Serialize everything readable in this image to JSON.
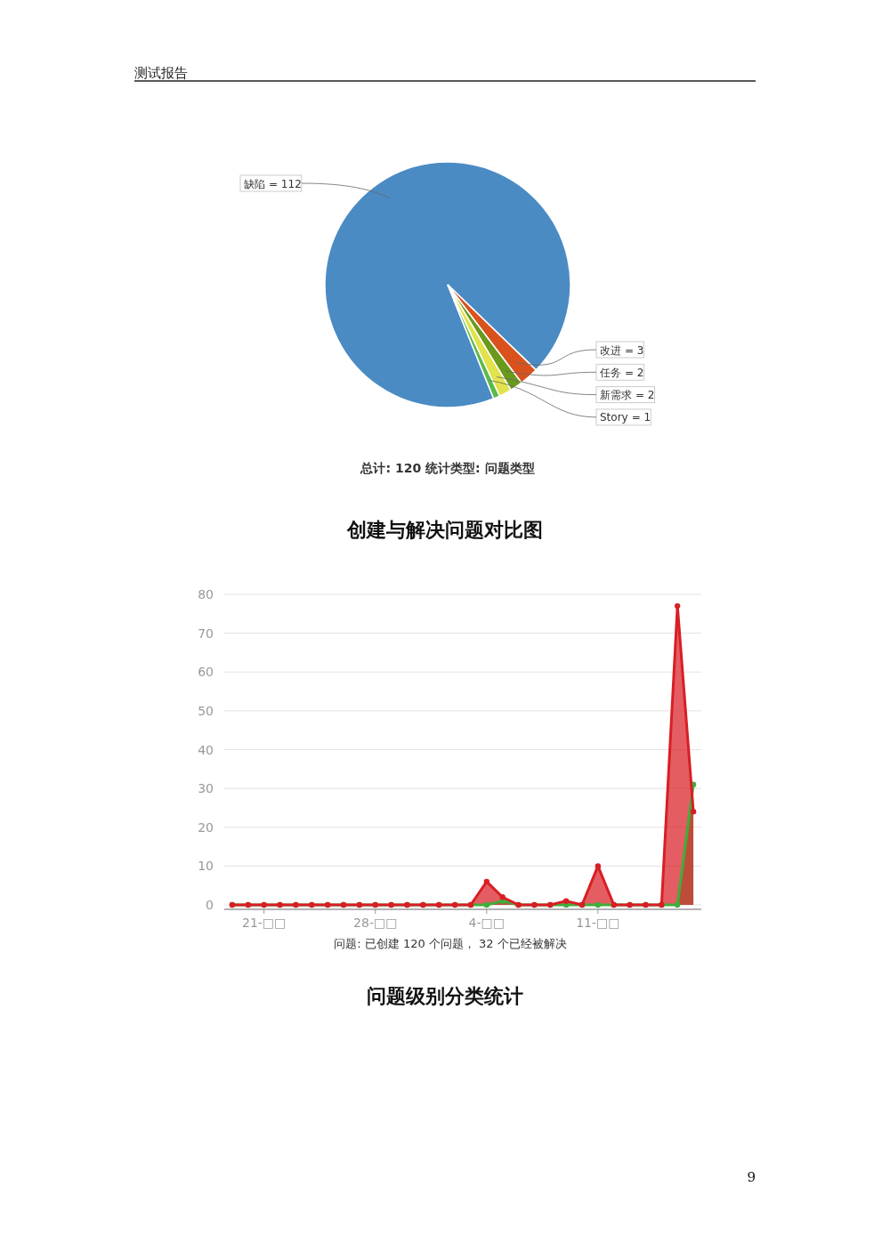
{
  "chart_data": [
    {
      "type": "pie",
      "categories": [
        "缺陷",
        "改进",
        "任务",
        "新需求",
        "Story"
      ],
      "values": [
        112,
        3,
        2,
        2,
        1
      ],
      "colors": [
        "#4a8bc4",
        "#d9521e",
        "#6a9a1c",
        "#e2e24c",
        "#5cba48"
      ],
      "value_labels": [
        "= 112",
        "= 3",
        "= 2",
        "= 2",
        "= 1"
      ],
      "annotations": [
        "测试报告",
        "总计: 120    统计类型: 问题类型"
      ]
    },
    {
      "type": "area",
      "title": "创建与解决问题对比图",
      "categories": [
        null,
        null,
        "21-□□",
        null,
        null,
        null,
        null,
        null,
        null,
        "28-□□",
        null,
        null,
        null,
        null,
        null,
        null,
        "4-□□",
        null,
        null,
        null,
        null,
        null,
        null,
        "11-□□",
        null,
        null,
        null,
        null,
        null,
        null
      ],
      "series": [
        {
          "color": "#3fae3a",
          "values": [
            0,
            0,
            0,
            0,
            0,
            0,
            0,
            0,
            0,
            0,
            0,
            0,
            0,
            0,
            0,
            0,
            0,
            1,
            0,
            0,
            0,
            0,
            0,
            0,
            0,
            0,
            0,
            0,
            0,
            31
          ]
        },
        {
          "color": "#d91e25",
          "values": [
            0,
            0,
            0,
            0,
            0,
            0,
            0,
            0,
            0,
            0,
            0,
            0,
            0,
            0,
            0,
            0,
            6,
            2,
            0,
            0,
            0,
            1,
            0,
            10,
            0,
            0,
            0,
            0,
            77,
            24
          ]
        }
      ],
      "ylim": [
        0,
        80
      ],
      "yticks": [
        0,
        10,
        20,
        30,
        40,
        50,
        60,
        70,
        80
      ],
      "grid": "y",
      "marker": "circle",
      "annotations": [
        "问题: 已创建 120 个问题， 32 个已经被解决",
        "问题级别分类统计",
        "9"
      ]
    }
  ]
}
